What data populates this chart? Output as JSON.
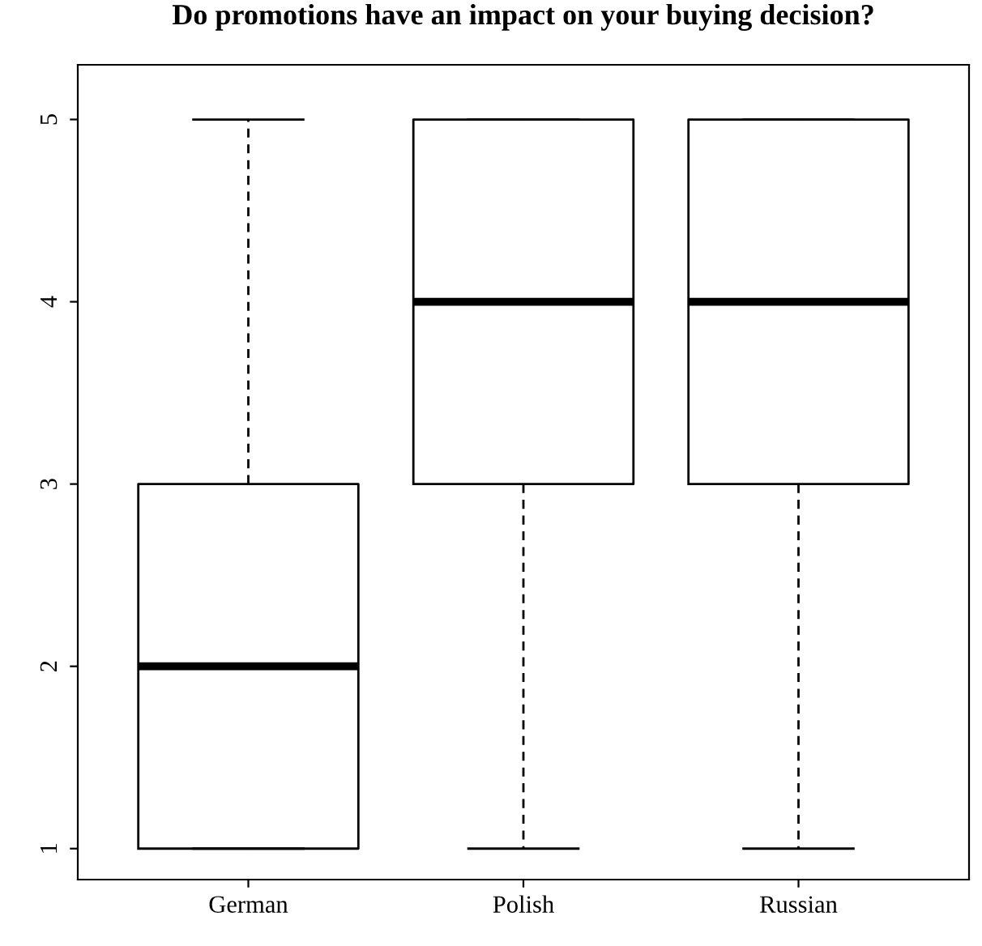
{
  "chart_data": {
    "type": "box",
    "title": "Do promotions have an impact on your buying decision?",
    "categories": [
      "German",
      "Polish",
      "Russian"
    ],
    "boxes": [
      {
        "low": 1,
        "q1": 1,
        "median": 2,
        "q3": 3,
        "high": 5
      },
      {
        "low": 1,
        "q1": 3,
        "median": 4,
        "q3": 5,
        "high": 5
      },
      {
        "low": 1,
        "q1": 3,
        "median": 4,
        "q3": 5,
        "high": 5
      }
    ],
    "ylim": [
      0.83,
      5.3
    ],
    "yticks": [
      1,
      2,
      3,
      4,
      5
    ],
    "grid": false,
    "legend": false
  }
}
